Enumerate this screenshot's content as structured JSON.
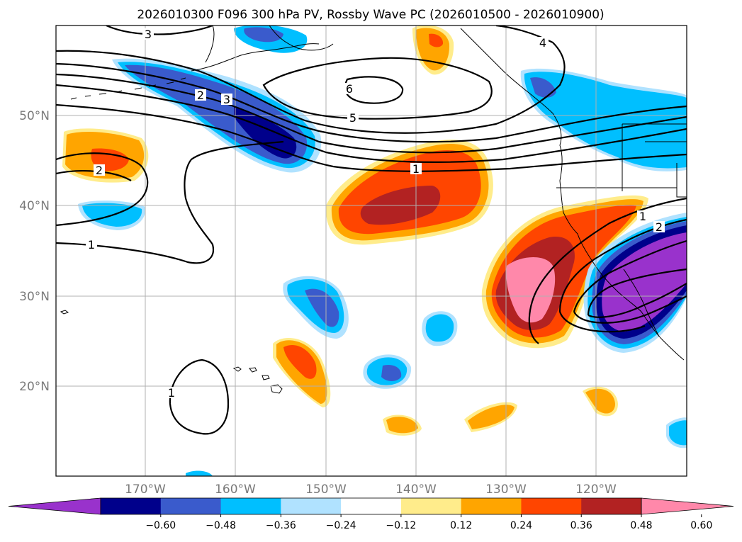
{
  "title": "2026010300 F096 300 hPa PV, Rossby Wave PC (2026010500 - 2026010900)",
  "lat_labels": [
    "50°N",
    "40°N",
    "30°N",
    "20°N"
  ],
  "lon_labels": [
    "170°W",
    "160°W",
    "150°W",
    "140°W",
    "130°W",
    "120°W"
  ],
  "colorbar": {
    "ticks": [
      "−0.60",
      "−0.48",
      "−0.36",
      "−0.24",
      "−0.12",
      "0.12",
      "0.24",
      "0.36",
      "0.48",
      "0.60"
    ],
    "colors": [
      "#9932CC",
      "#00008B",
      "#3A5BCC",
      "#00BFFF",
      "#B0E2FF",
      "#FFFFFF",
      "#FFEC8B",
      "#FFA500",
      "#FF4500",
      "#B22222",
      "#FF88AA"
    ]
  },
  "contour_labels": {
    "c3_top": "3",
    "c2_mid": "2",
    "c3_mid": "3",
    "c4_top": "4",
    "c6": "6",
    "c5": "5",
    "c1_mid": "1",
    "c2_left": "2",
    "c1_left": "1",
    "c1_bottom": "1",
    "c1_east": "1",
    "c2_east": "2"
  }
}
